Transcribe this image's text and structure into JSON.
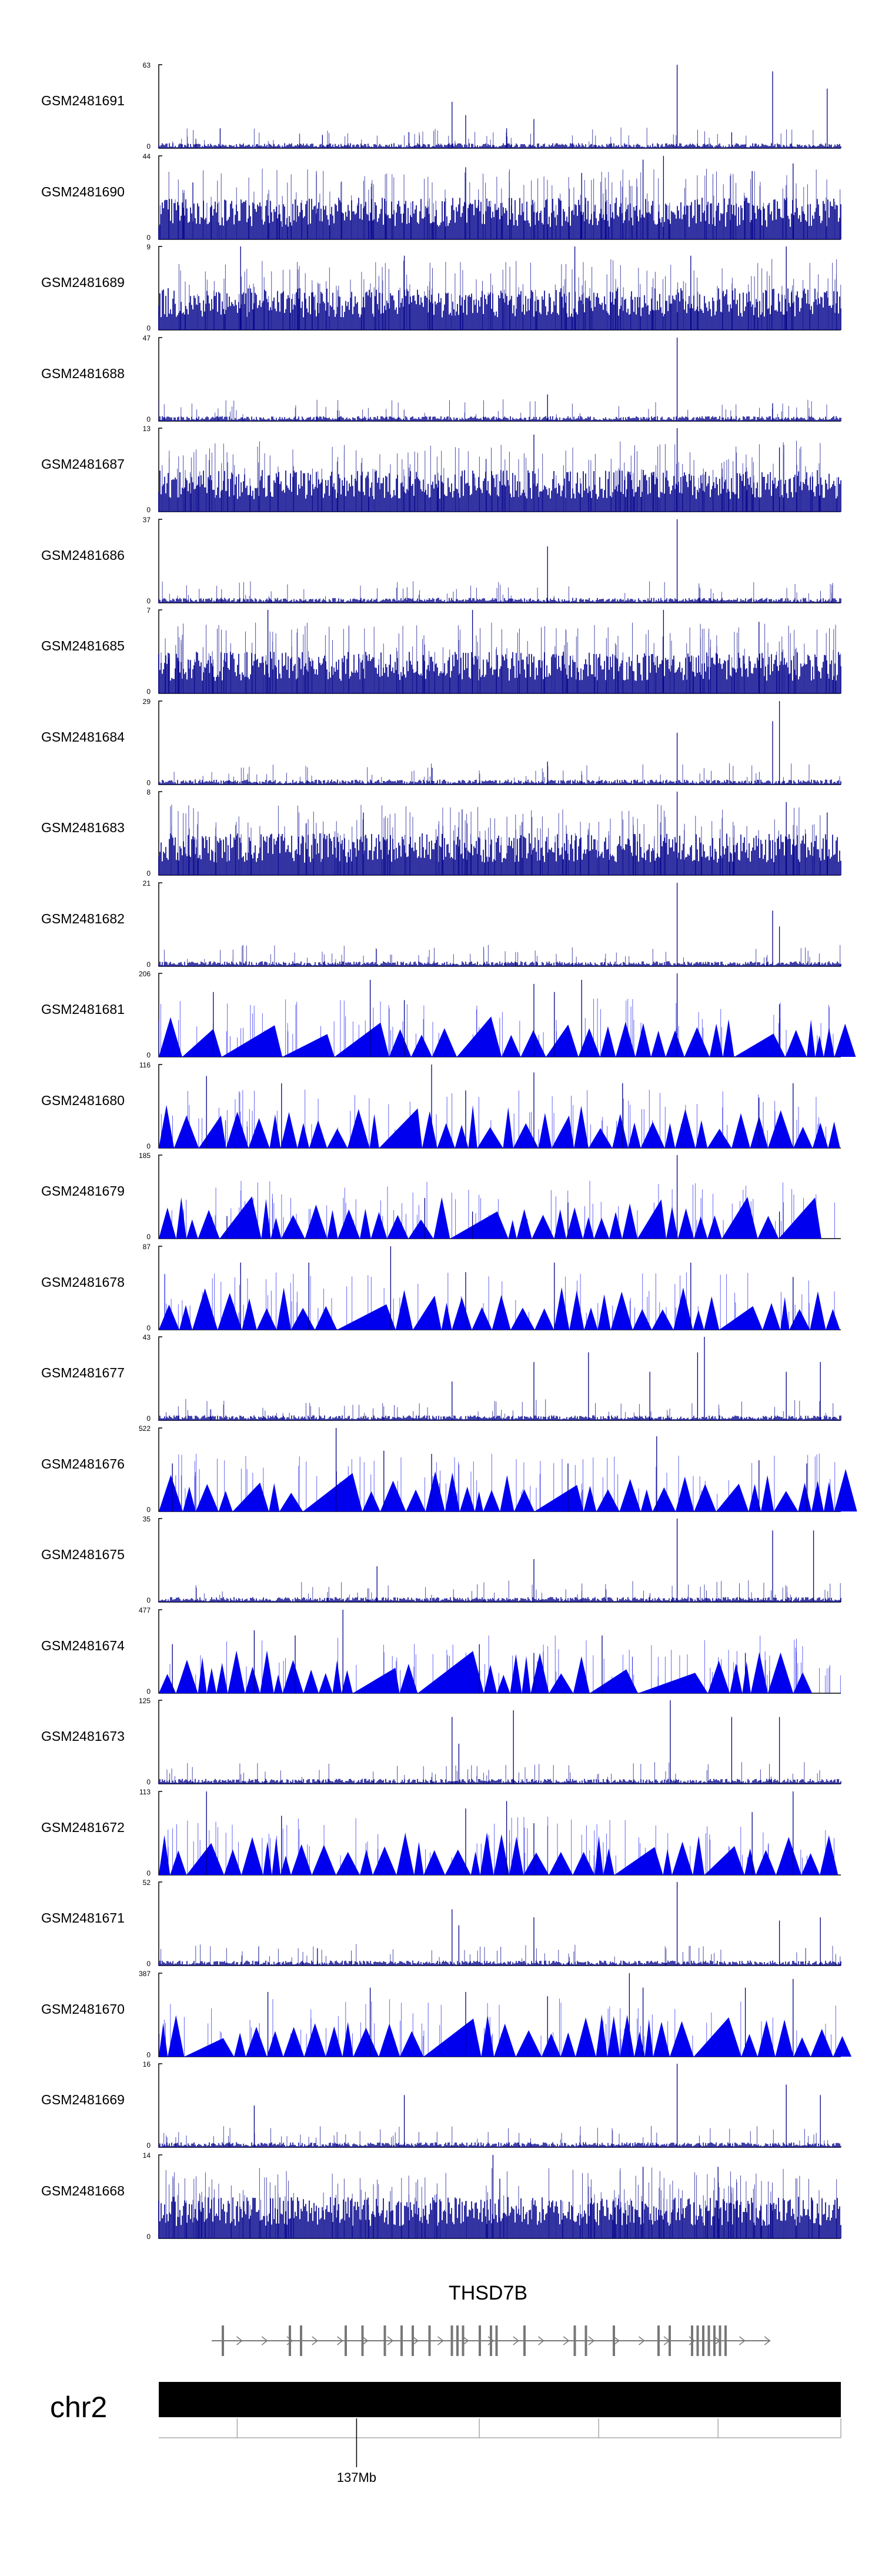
{
  "chart_data": {
    "type": "area",
    "tracks": [
      {
        "name": "GSM2481691",
        "ymax": 63,
        "style": "spiky",
        "peaks": [
          [
            0.09,
            15
          ],
          [
            0.24,
            10
          ],
          [
            0.43,
            35
          ],
          [
            0.45,
            25
          ],
          [
            0.51,
            15
          ],
          [
            0.55,
            22
          ],
          [
            0.76,
            63
          ],
          [
            0.84,
            12
          ],
          [
            0.9,
            58
          ],
          [
            0.98,
            45
          ]
        ]
      },
      {
        "name": "GSM2481690",
        "ymax": 44,
        "style": "dense",
        "peaks": [
          [
            0.05,
            30
          ],
          [
            0.45,
            38
          ],
          [
            0.62,
            35
          ],
          [
            0.71,
            42
          ],
          [
            0.74,
            44
          ],
          [
            0.87,
            36
          ],
          [
            0.93,
            40
          ]
        ]
      },
      {
        "name": "GSM2481689",
        "ymax": 9,
        "style": "dense",
        "peaks": [
          [
            0.12,
            9
          ],
          [
            0.36,
            8
          ],
          [
            0.61,
            9
          ],
          [
            0.78,
            8
          ],
          [
            0.92,
            9
          ]
        ]
      },
      {
        "name": "GSM2481688",
        "ymax": 47,
        "style": "spiky",
        "peaks": [
          [
            0.57,
            15
          ],
          [
            0.76,
            47
          ],
          [
            0.9,
            10
          ]
        ]
      },
      {
        "name": "GSM2481687",
        "ymax": 13,
        "style": "dense",
        "peaks": [
          [
            0.55,
            12
          ],
          [
            0.76,
            13
          ],
          [
            0.91,
            10
          ]
        ]
      },
      {
        "name": "GSM2481686",
        "ymax": 37,
        "style": "spiky",
        "peaks": [
          [
            0.57,
            25
          ],
          [
            0.76,
            37
          ]
        ]
      },
      {
        "name": "GSM2481685",
        "ymax": 7,
        "style": "dense",
        "peaks": [
          [
            0.16,
            7
          ],
          [
            0.46,
            7
          ],
          [
            0.74,
            7
          ],
          [
            0.88,
            6
          ]
        ]
      },
      {
        "name": "GSM2481684",
        "ymax": 29,
        "style": "spiky",
        "peaks": [
          [
            0.57,
            8
          ],
          [
            0.76,
            18
          ],
          [
            0.91,
            29
          ],
          [
            0.9,
            22
          ]
        ]
      },
      {
        "name": "GSM2481683",
        "ymax": 8,
        "style": "dense",
        "peaks": [
          [
            0.3,
            6
          ],
          [
            0.76,
            8
          ],
          [
            0.92,
            7
          ],
          [
            0.98,
            6
          ]
        ]
      },
      {
        "name": "GSM2481682",
        "ymax": 21,
        "style": "spiky",
        "peaks": [
          [
            0.76,
            21
          ],
          [
            0.9,
            14
          ],
          [
            0.91,
            10
          ]
        ]
      },
      {
        "name": "GSM2481681",
        "ymax": 206,
        "style": "tri",
        "peaks": [
          [
            0.08,
            160
          ],
          [
            0.31,
            190
          ],
          [
            0.36,
            140
          ],
          [
            0.55,
            180
          ],
          [
            0.58,
            160
          ],
          [
            0.62,
            190
          ],
          [
            0.76,
            206
          ],
          [
            0.91,
            130
          ]
        ]
      },
      {
        "name": "GSM2481680",
        "ymax": 116,
        "style": "tri",
        "peaks": [
          [
            0.07,
            100
          ],
          [
            0.18,
            90
          ],
          [
            0.4,
            116
          ],
          [
            0.45,
            80
          ],
          [
            0.55,
            105
          ],
          [
            0.68,
            90
          ],
          [
            0.88,
            70
          ],
          [
            0.93,
            90
          ]
        ]
      },
      {
        "name": "GSM2481679",
        "ymax": 185,
        "style": "tri",
        "peaks": [
          [
            0.1,
            50
          ],
          [
            0.39,
            90
          ],
          [
            0.46,
            60
          ],
          [
            0.6,
            80
          ],
          [
            0.76,
            185
          ],
          [
            0.91,
            60
          ]
        ]
      },
      {
        "name": "GSM2481678",
        "ymax": 87,
        "style": "tri",
        "peaks": [
          [
            0.12,
            70
          ],
          [
            0.22,
            70
          ],
          [
            0.34,
            87
          ],
          [
            0.45,
            60
          ],
          [
            0.58,
            70
          ],
          [
            0.78,
            70
          ],
          [
            0.93,
            55
          ]
        ]
      },
      {
        "name": "GSM2481677",
        "ymax": 43,
        "style": "spiky",
        "peaks": [
          [
            0.43,
            20
          ],
          [
            0.55,
            30
          ],
          [
            0.63,
            35
          ],
          [
            0.72,
            25
          ],
          [
            0.79,
            35
          ],
          [
            0.8,
            43
          ],
          [
            0.92,
            25
          ],
          [
            0.97,
            30
          ]
        ]
      },
      {
        "name": "GSM2481676",
        "ymax": 522,
        "style": "tri",
        "peaks": [
          [
            0.02,
            300
          ],
          [
            0.26,
            522
          ],
          [
            0.33,
            380
          ],
          [
            0.4,
            360
          ],
          [
            0.6,
            300
          ],
          [
            0.73,
            470
          ],
          [
            0.88,
            320
          ],
          [
            0.95,
            300
          ]
        ]
      },
      {
        "name": "GSM2481675",
        "ymax": 35,
        "style": "spiky",
        "peaks": [
          [
            0.32,
            15
          ],
          [
            0.55,
            18
          ],
          [
            0.76,
            35
          ],
          [
            0.9,
            30
          ],
          [
            0.96,
            30
          ]
        ]
      },
      {
        "name": "GSM2481674",
        "ymax": 477,
        "style": "tri",
        "peaks": [
          [
            0.02,
            280
          ],
          [
            0.14,
            360
          ],
          [
            0.2,
            330
          ],
          [
            0.27,
            477
          ],
          [
            0.47,
            280
          ],
          [
            0.55,
            230
          ],
          [
            0.65,
            330
          ],
          [
            0.86,
            230
          ]
        ]
      },
      {
        "name": "GSM2481673",
        "ymax": 125,
        "style": "spiky",
        "peaks": [
          [
            0.43,
            100
          ],
          [
            0.44,
            60
          ],
          [
            0.52,
            110
          ],
          [
            0.75,
            125
          ],
          [
            0.84,
            100
          ],
          [
            0.91,
            100
          ]
        ]
      },
      {
        "name": "GSM2481672",
        "ymax": 113,
        "style": "tri",
        "peaks": [
          [
            0.07,
            113
          ],
          [
            0.18,
            80
          ],
          [
            0.45,
            90
          ],
          [
            0.51,
            100
          ],
          [
            0.55,
            70
          ],
          [
            0.87,
            85
          ],
          [
            0.93,
            113
          ]
        ]
      },
      {
        "name": "GSM2481671",
        "ymax": 52,
        "style": "spiky",
        "peaks": [
          [
            0.43,
            35
          ],
          [
            0.44,
            25
          ],
          [
            0.55,
            30
          ],
          [
            0.76,
            52
          ],
          [
            0.91,
            28
          ],
          [
            0.97,
            30
          ]
        ]
      },
      {
        "name": "GSM2481670",
        "ymax": 387,
        "style": "tri",
        "peaks": [
          [
            0.16,
            300
          ],
          [
            0.31,
            320
          ],
          [
            0.45,
            300
          ],
          [
            0.57,
            280
          ],
          [
            0.69,
            387
          ],
          [
            0.71,
            320
          ],
          [
            0.86,
            320
          ],
          [
            0.93,
            360
          ]
        ]
      },
      {
        "name": "GSM2481669",
        "ymax": 16,
        "style": "spiky",
        "peaks": [
          [
            0.14,
            8
          ],
          [
            0.36,
            10
          ],
          [
            0.76,
            16
          ],
          [
            0.92,
            12
          ],
          [
            0.97,
            10
          ]
        ]
      },
      {
        "name": "GSM2481668",
        "ymax": 14,
        "style": "dense",
        "peaks": [
          [
            0.49,
            14
          ],
          [
            0.5,
            10
          ],
          [
            0.71,
            12
          ],
          [
            0.82,
            12
          ]
        ]
      }
    ],
    "gene": {
      "name": "THSD7B",
      "exons": [
        0.02,
        0.14,
        0.16,
        0.24,
        0.27,
        0.31,
        0.34,
        0.36,
        0.39,
        0.43,
        0.44,
        0.45,
        0.48,
        0.5,
        0.51,
        0.56,
        0.65,
        0.67,
        0.72,
        0.8,
        0.82,
        0.86,
        0.87,
        0.88,
        0.89,
        0.9,
        0.91,
        0.92
      ]
    },
    "chromosome": "chr2",
    "ticks": [
      0.115,
      0.29,
      0.47,
      0.645,
      0.82,
      1.0
    ],
    "tick_label": "137Mb",
    "labeled_tick": 0.29
  },
  "colors": {
    "signal": "#0000ee",
    "dense": "#00008b",
    "axis": "#000000",
    "gene": "#777777",
    "chrom": "#000000"
  }
}
